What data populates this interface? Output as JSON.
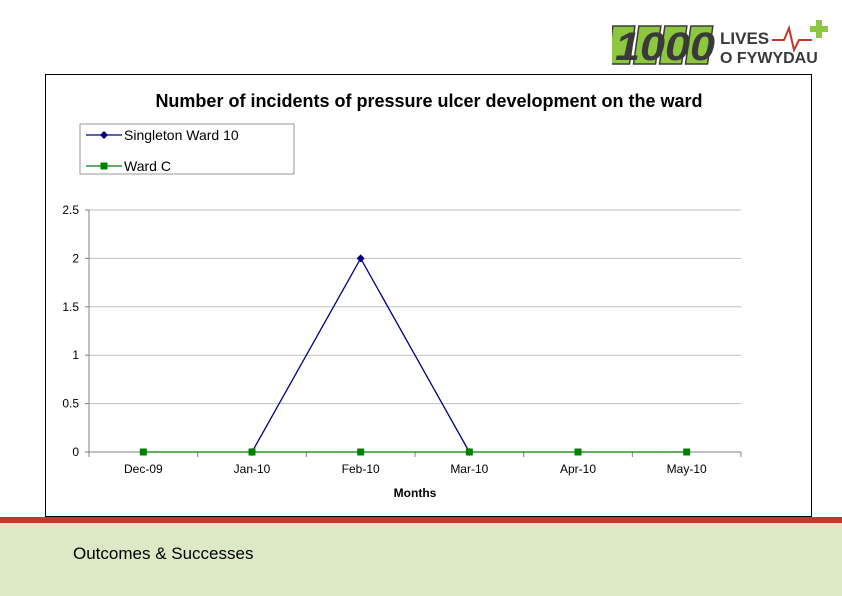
{
  "logo": {
    "number_text": "1000",
    "line1": "LIVES",
    "line2": "O FYWYDAU",
    "colors": {
      "green": "#8dc63f",
      "red": "#c0392b",
      "dark": "#3a3a3a"
    }
  },
  "footer": {
    "text": "Outcomes & Successes",
    "band_color": "#dde8c6",
    "accent_color": "#c0392b"
  },
  "chart_data": {
    "type": "line",
    "title": "Number of incidents of pressure ulcer development on the ward",
    "xlabel": "Months",
    "ylabel": "",
    "categories": [
      "Dec-09",
      "Jan-10",
      "Feb-10",
      "Mar-10",
      "Apr-10",
      "May-10"
    ],
    "ylim": [
      0,
      2.5
    ],
    "yticks": [
      "0",
      "0.5",
      "1",
      "1.5",
      "2",
      "2.5"
    ],
    "grid": true,
    "legend_placement": "top-left",
    "series": [
      {
        "name": "Singleton Ward 10",
        "color": "#000080",
        "marker": "diamond",
        "values": [
          null,
          0,
          2,
          0,
          null,
          null
        ]
      },
      {
        "name": "Ward C",
        "color": "#008000",
        "marker": "square",
        "values": [
          0,
          0,
          0,
          0,
          0,
          0
        ]
      }
    ]
  }
}
